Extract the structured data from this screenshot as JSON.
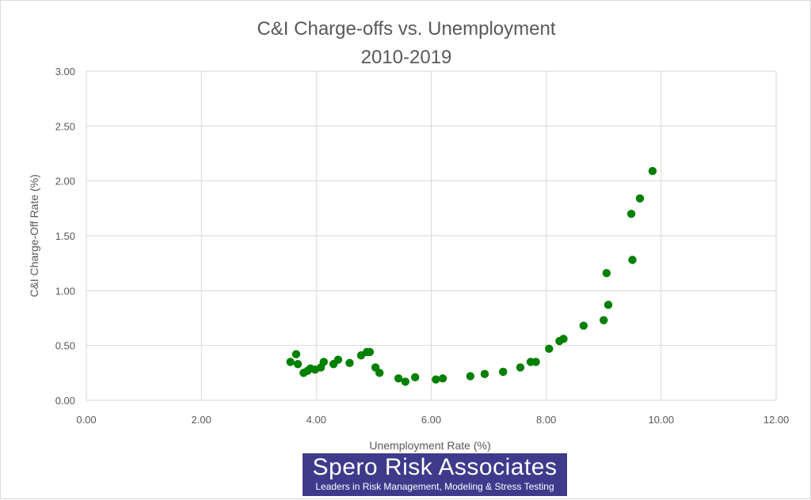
{
  "chart_data": {
    "type": "scatter",
    "title": [
      "C&I Charge-offs vs. Unemployment",
      "2010-2019"
    ],
    "xlabel": "Unemployment  Rate (%)",
    "ylabel": "C&I Charge-Off Rate (%)",
    "xlim": [
      0,
      12
    ],
    "ylim": [
      0,
      3
    ],
    "xticks": [
      "0.00",
      "2.00",
      "4.00",
      "6.00",
      "8.00",
      "10.00",
      "12.00"
    ],
    "yticks": [
      "0.00",
      "0.50",
      "1.00",
      "1.50",
      "2.00",
      "2.50",
      "3.00"
    ],
    "grid": true,
    "marker_color": "#008000",
    "series": [
      {
        "points": [
          [
            3.55,
            0.35
          ],
          [
            3.65,
            0.42
          ],
          [
            3.68,
            0.33
          ],
          [
            3.78,
            0.25
          ],
          [
            3.85,
            0.27
          ],
          [
            3.9,
            0.29
          ],
          [
            3.98,
            0.28
          ],
          [
            4.08,
            0.3
          ],
          [
            4.13,
            0.35
          ],
          [
            4.3,
            0.33
          ],
          [
            4.38,
            0.37
          ],
          [
            4.58,
            0.34
          ],
          [
            4.78,
            0.41
          ],
          [
            4.88,
            0.44
          ],
          [
            4.93,
            0.44
          ],
          [
            5.03,
            0.3
          ],
          [
            5.1,
            0.25
          ],
          [
            5.43,
            0.2
          ],
          [
            5.55,
            0.17
          ],
          [
            5.72,
            0.21
          ],
          [
            6.08,
            0.19
          ],
          [
            6.2,
            0.2
          ],
          [
            6.68,
            0.22
          ],
          [
            6.93,
            0.24
          ],
          [
            7.25,
            0.26
          ],
          [
            7.55,
            0.3
          ],
          [
            7.73,
            0.35
          ],
          [
            7.82,
            0.35
          ],
          [
            8.05,
            0.47
          ],
          [
            8.23,
            0.54
          ],
          [
            8.3,
            0.56
          ],
          [
            8.65,
            0.68
          ],
          [
            9.0,
            0.73
          ],
          [
            9.05,
            1.16
          ],
          [
            9.08,
            0.87
          ],
          [
            9.48,
            1.7
          ],
          [
            9.5,
            1.28
          ],
          [
            9.63,
            1.84
          ],
          [
            9.85,
            2.09
          ]
        ]
      }
    ]
  },
  "logo": {
    "name": "Spero Risk Associates",
    "tagline": "Leaders in Risk Management, Modeling & Stress Testing",
    "color": "#3f3a8c"
  }
}
